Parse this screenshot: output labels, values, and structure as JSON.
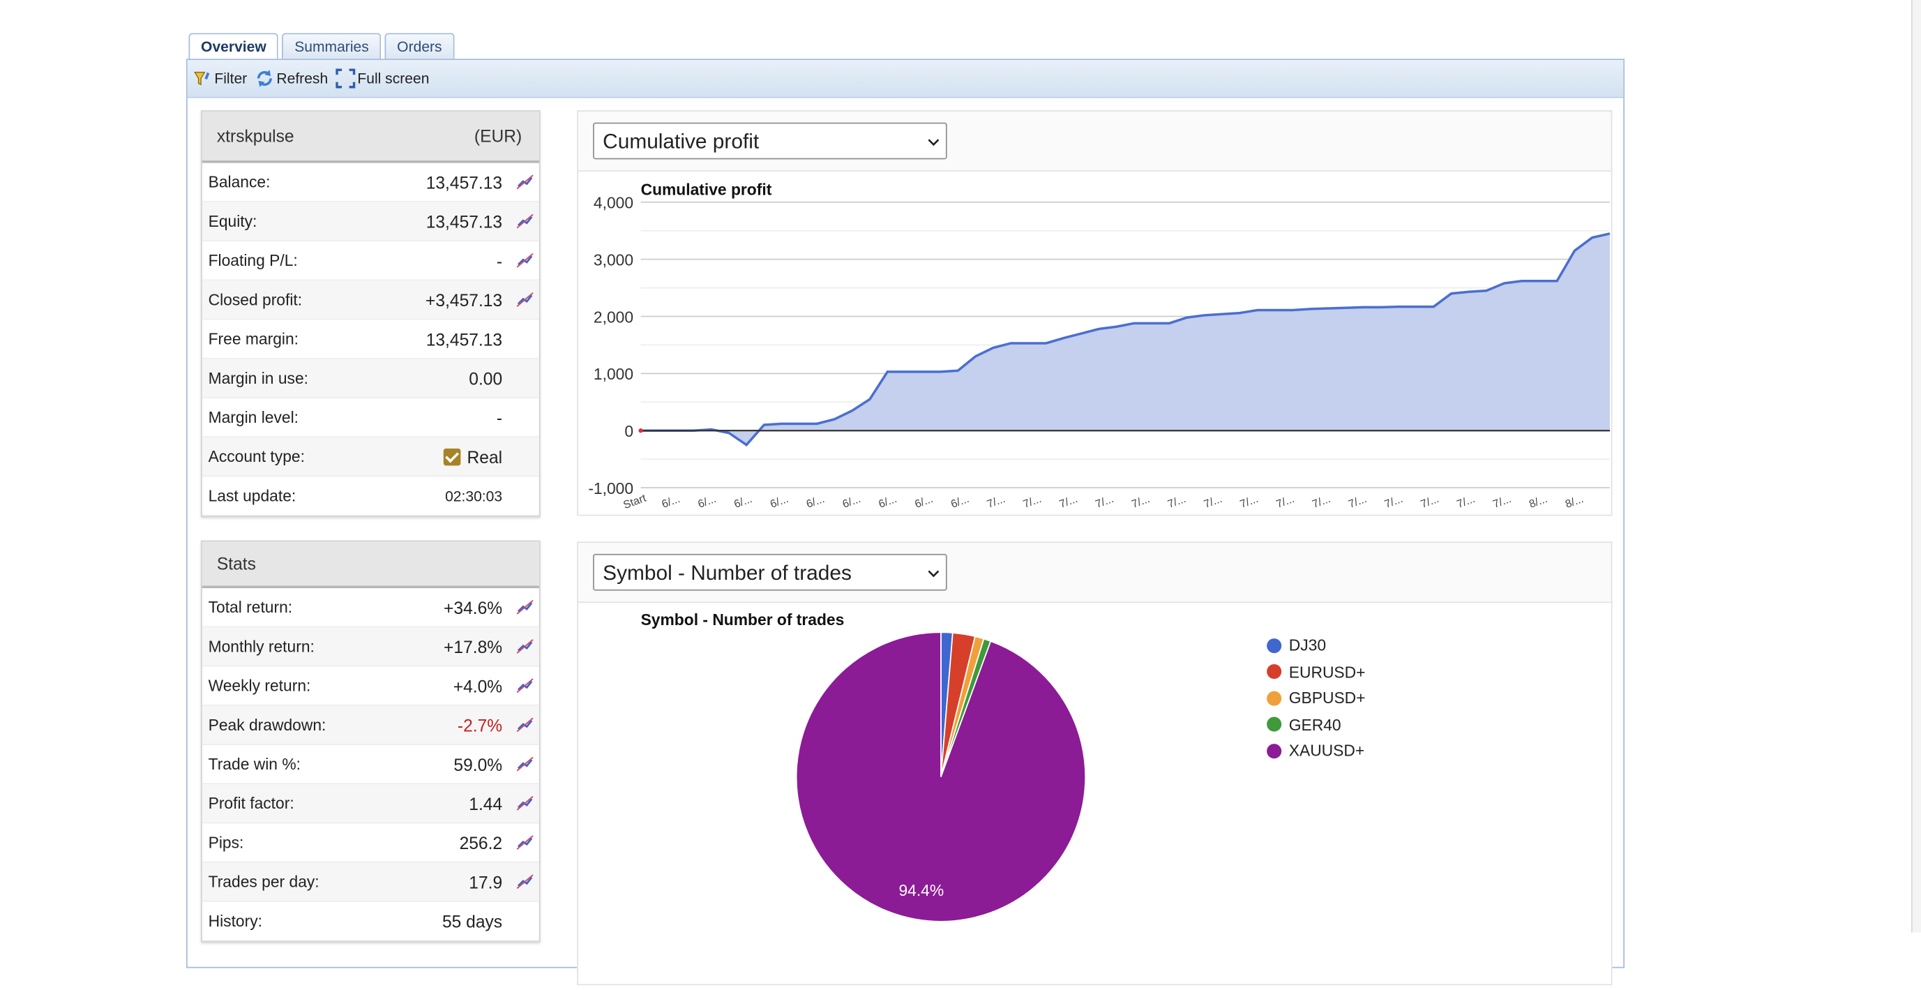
{
  "tabs": [
    {
      "label": "Overview",
      "active": true
    },
    {
      "label": "Summaries",
      "active": false
    },
    {
      "label": "Orders",
      "active": false
    }
  ],
  "toolbar": {
    "filter": "Filter",
    "refresh": "Refresh",
    "fullscreen": "Full screen"
  },
  "account": {
    "name": "xtrskpulse",
    "currency": "(EUR)",
    "rows": [
      {
        "label": "Balance:",
        "value": "13,457.13",
        "chart": true
      },
      {
        "label": "Equity:",
        "value": "13,457.13",
        "chart": true
      },
      {
        "label": "Floating P/L:",
        "value": "-",
        "chart": true
      },
      {
        "label": "Closed profit:",
        "value": "+3,457.13",
        "chart": true
      },
      {
        "label": "Free margin:",
        "value": "13,457.13",
        "chart": false
      },
      {
        "label": "Margin in use:",
        "value": "0.00",
        "chart": false
      },
      {
        "label": "Margin level:",
        "value": "-",
        "chart": false
      },
      {
        "label": "Account type:",
        "value": "Real",
        "chart": false,
        "checkbox": true
      },
      {
        "label": "Last update:",
        "value": "02:30:03",
        "chart": false,
        "small": true
      }
    ]
  },
  "stats": {
    "title": "Stats",
    "rows": [
      {
        "label": "Total return:",
        "value": "+34.6%",
        "chart": true
      },
      {
        "label": "Monthly return:",
        "value": "+17.8%",
        "chart": true
      },
      {
        "label": "Weekly return:",
        "value": "+4.0%",
        "chart": true
      },
      {
        "label": "Peak drawdown:",
        "value": "-2.7%",
        "chart": true,
        "negative": true
      },
      {
        "label": "Trade win %:",
        "value": "59.0%",
        "chart": true
      },
      {
        "label": "Profit factor:",
        "value": "1.44",
        "chart": true
      },
      {
        "label": "Pips:",
        "value": "256.2",
        "chart": true
      },
      {
        "label": "Trades per day:",
        "value": "17.9",
        "chart": true
      },
      {
        "label": "History:",
        "value": "55 days",
        "chart": false
      }
    ]
  },
  "chart1_select": "Cumulative profit",
  "chart2_select": "Symbol - Number of trades",
  "chart_data": [
    {
      "type": "area",
      "title": "Cumulative profit",
      "ylim": [
        -1000,
        4000
      ],
      "yticks": [
        "4,000",
        "3,000",
        "2,000",
        "1,000",
        "0",
        "-1,000"
      ],
      "xticks": [
        "Start",
        "6/...",
        "6/...",
        "6/...",
        "6/...",
        "6/...",
        "6/...",
        "6/...",
        "6/...",
        "6/...",
        "7/...",
        "7/...",
        "7/...",
        "7/...",
        "7/...",
        "7/...",
        "7/...",
        "7/...",
        "7/...",
        "7/...",
        "7/...",
        "7/...",
        "7/...",
        "7/...",
        "7/...",
        "8/...",
        "8/..."
      ],
      "values": [
        0,
        0,
        0,
        0,
        20,
        -40,
        -250,
        100,
        120,
        120,
        120,
        200,
        350,
        550,
        1030,
        1030,
        1030,
        1030,
        1050,
        1300,
        1450,
        1530,
        1530,
        1530,
        1620,
        1700,
        1780,
        1820,
        1880,
        1880,
        1880,
        1980,
        2020,
        2040,
        2060,
        2110,
        2110,
        2110,
        2130,
        2140,
        2150,
        2160,
        2160,
        2170,
        2170,
        2170,
        2400,
        2430,
        2450,
        2580,
        2620,
        2620,
        2620,
        3150,
        3380,
        3450
      ],
      "accent": "#4a6fcf"
    },
    {
      "type": "pie",
      "title": "Symbol - Number of trades",
      "categories": [
        "DJ30",
        "EURUSD+",
        "GBPUSD+",
        "GER40",
        "XAUUSD+"
      ],
      "values": [
        1.3,
        2.5,
        1.0,
        0.8,
        94.4
      ],
      "colors": [
        "#3f67cf",
        "#d6402a",
        "#f0a03a",
        "#3e9a3a",
        "#8c1b96"
      ],
      "labels": [
        "",
        "",
        "",
        "",
        "94.4%"
      ]
    }
  ]
}
